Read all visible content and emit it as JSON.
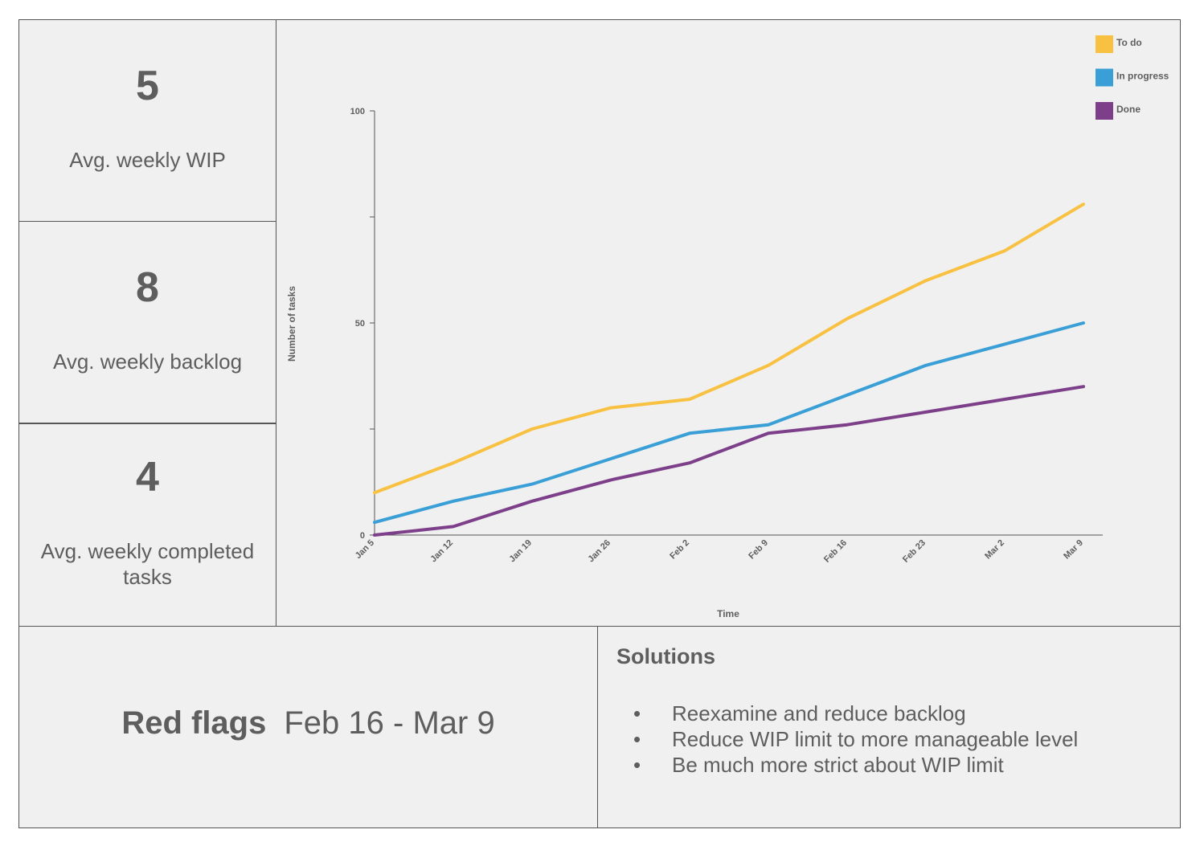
{
  "kpis": [
    {
      "value": "5",
      "label": "Avg. weekly WIP"
    },
    {
      "value": "8",
      "label": "Avg. weekly backlog"
    },
    {
      "value": "4",
      "label": "Avg. weekly completed tasks"
    }
  ],
  "red_flags": {
    "title": "Red flags",
    "range": "Feb 16 - Mar 9"
  },
  "solutions": {
    "title": "Solutions",
    "bullet": "•",
    "items": [
      "Reexamine and reduce backlog",
      "Reduce WIP limit to more manageable level",
      "Be much more strict about WIP limit"
    ]
  },
  "chart_data": {
    "type": "line",
    "title": "",
    "xlabel": "Time",
    "ylabel": "Number of tasks",
    "categories": [
      "Jan 5",
      "Jan 12",
      "Jan 19",
      "Jan 26",
      "Feb 2",
      "Feb 9",
      "Feb 16",
      "Feb 23",
      "Mar 2",
      "Mar 9"
    ],
    "ylim": [
      0,
      100
    ],
    "yticks": [
      0,
      50,
      100
    ],
    "minor_yticks": [
      25,
      75
    ],
    "grid": false,
    "legend_position": "top-right",
    "series": [
      {
        "name": "To do",
        "color": "#f8c141",
        "values": [
          10,
          17,
          25,
          30,
          32,
          40,
          51,
          60,
          67,
          78
        ]
      },
      {
        "name": "In progress",
        "color": "#3a9fd6",
        "values": [
          3,
          8,
          12,
          18,
          24,
          26,
          33,
          40,
          45,
          50
        ]
      },
      {
        "name": "Done",
        "color": "#7d3f8a",
        "values": [
          0,
          2,
          8,
          13,
          17,
          24,
          26,
          29,
          32,
          35
        ]
      }
    ]
  }
}
